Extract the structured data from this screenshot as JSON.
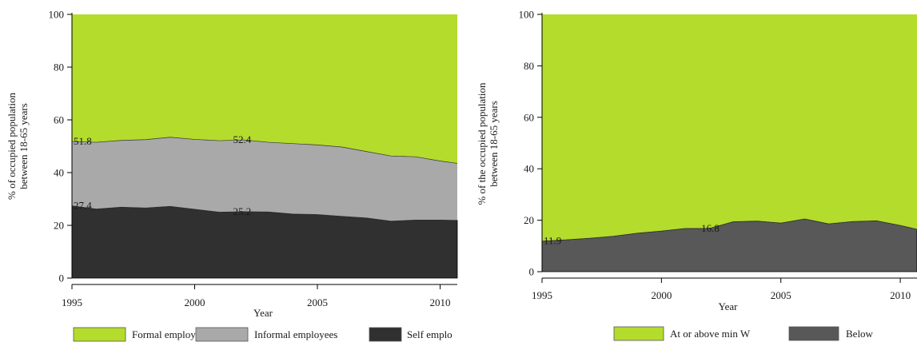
{
  "colors": {
    "formal": "#b3dc2d",
    "informal": "#a9a9a9",
    "self": "#303030",
    "below": "#585858",
    "axis": "#000000"
  },
  "chart_data": [
    {
      "type": "area",
      "stacked": true,
      "xlabel": "Year",
      "ylabel_line1": "% of occupied population",
      "ylabel_line2": "between 18-65 years",
      "xlim": [
        1995,
        2010.7
      ],
      "ylim": [
        0,
        100
      ],
      "xticks": [
        1995,
        2000,
        2005,
        2010
      ],
      "yticks": [
        0,
        20,
        40,
        60,
        80,
        100
      ],
      "x": [
        1995,
        1996,
        1997,
        1998,
        1999,
        2000,
        2001,
        2002,
        2003,
        2004,
        2005,
        2006,
        2007,
        2008,
        2009,
        2010,
        2010.7
      ],
      "series": [
        {
          "name": "Self employed",
          "color_key": "self",
          "values": [
            27.4,
            26.2,
            26.9,
            26.6,
            27.2,
            26.1,
            25.0,
            25.2,
            25.1,
            24.3,
            24.1,
            23.4,
            22.8,
            21.6,
            22.0,
            22.0,
            21.9
          ]
        },
        {
          "name": "Informal employees",
          "color_key": "informal",
          "values": [
            24.4,
            25.3,
            25.3,
            25.9,
            26.2,
            26.5,
            27.1,
            27.2,
            26.4,
            26.7,
            26.4,
            26.3,
            25.2,
            24.7,
            24.0,
            22.4,
            21.6
          ]
        },
        {
          "name": "Formal employees",
          "color_key": "formal",
          "values": [
            48.2,
            48.5,
            47.8,
            47.5,
            46.6,
            47.4,
            47.9,
            47.6,
            48.5,
            49.0,
            49.5,
            50.3,
            52.0,
            53.7,
            54.0,
            55.6,
            56.5
          ]
        }
      ],
      "annotations": [
        {
          "x": 1995,
          "y": 51.8,
          "text": "51.8"
        },
        {
          "x": 2001.5,
          "y": 52.4,
          "text": "52.4"
        },
        {
          "x": 1995,
          "y": 27.4,
          "text": "27.4"
        },
        {
          "x": 2001.5,
          "y": 25.2,
          "text": "25.2"
        }
      ],
      "legend": [
        "Formal employees",
        "Informal employees",
        "Self emplo"
      ]
    },
    {
      "type": "area",
      "stacked": true,
      "xlabel": "Year",
      "ylabel_line1": "% of the occupied population",
      "ylabel_line2": "between 18-65 years",
      "xlim": [
        1995,
        2010.7
      ],
      "ylim": [
        0,
        100
      ],
      "xticks": [
        1995,
        2000,
        2005,
        2010
      ],
      "yticks": [
        0,
        20,
        40,
        60,
        80,
        100
      ],
      "x": [
        1995,
        1996,
        1997,
        1998,
        1999,
        2000,
        2001,
        2002,
        2003,
        2004,
        2005,
        2006,
        2007,
        2008,
        2009,
        2010,
        2010.7
      ],
      "series": [
        {
          "name": "Below",
          "color_key": "below",
          "values": [
            11.9,
            12.4,
            13.0,
            13.8,
            15.0,
            15.8,
            16.8,
            16.8,
            19.4,
            19.7,
            18.9,
            20.5,
            18.6,
            19.5,
            19.8,
            18.0,
            16.5
          ]
        },
        {
          "name": "At or above min W",
          "color_key": "formal",
          "values": [
            88.1,
            87.6,
            87.0,
            86.2,
            85.0,
            84.2,
            83.2,
            83.2,
            80.6,
            80.3,
            81.1,
            79.5,
            81.4,
            80.5,
            80.2,
            82.0,
            83.5
          ]
        }
      ],
      "annotations": [
        {
          "x": 1995,
          "y": 11.9,
          "text": "11.9"
        },
        {
          "x": 2001.6,
          "y": 16.8,
          "text": "16.8"
        }
      ],
      "legend": [
        "At or above min W",
        "Below"
      ]
    }
  ]
}
